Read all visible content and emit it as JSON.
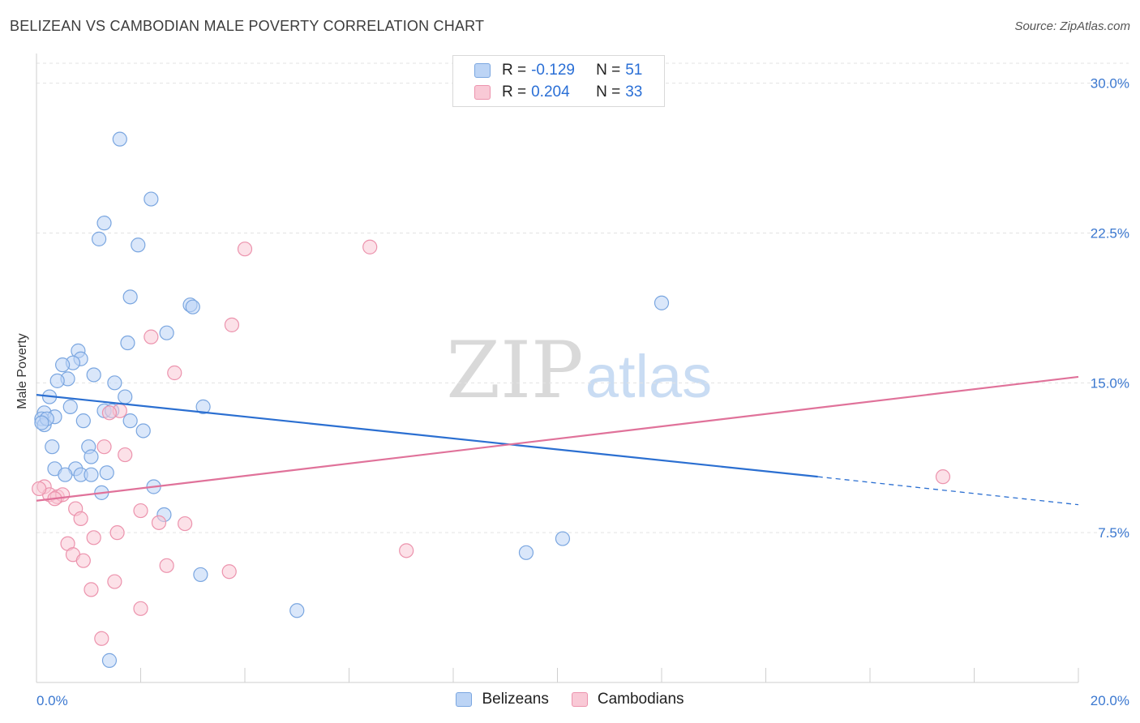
{
  "title": "BELIZEAN VS CAMBODIAN MALE POVERTY CORRELATION CHART",
  "source": "Source: ZipAtlas.com",
  "watermark": {
    "zip": "ZIP",
    "atlas": "atlas"
  },
  "legend": {
    "rows": [
      {
        "r_label": "R =",
        "r_value": "-0.129",
        "n_label": "N =",
        "n_value": "51"
      },
      {
        "r_label": "R =",
        "r_value": "0.204",
        "n_label": "N =",
        "n_value": "33"
      }
    ]
  },
  "bottom_legend": [
    "Belizeans",
    "Cambodians"
  ],
  "colors": {
    "blue_fill": "#bcd4f5",
    "blue_stroke": "#7aa6e0",
    "blue_line": "#2b6fd1",
    "pink_fill": "#f9c9d6",
    "pink_stroke": "#ec93ad",
    "pink_line": "#e0729a",
    "tick_text": "#3b78d0",
    "grid": "#e3e3e3"
  },
  "chart_data": {
    "type": "scatter",
    "title": "BELIZEAN VS CAMBODIAN MALE POVERTY CORRELATION CHART",
    "xlabel": "",
    "ylabel": "Male Poverty",
    "xlim": [
      0,
      20
    ],
    "ylim": [
      0,
      31
    ],
    "x_tick_labels": [
      "0.0%",
      "20.0%"
    ],
    "y_ticks": [
      7.5,
      15.0,
      22.5,
      30.0
    ],
    "y_tick_labels": [
      "7.5%",
      "15.0%",
      "22.5%",
      "30.0%"
    ],
    "series": [
      {
        "name": "Belizeans",
        "color": "#7aa6e0",
        "points": [
          [
            1.6,
            27.2
          ],
          [
            2.2,
            24.2
          ],
          [
            1.3,
            23.0
          ],
          [
            1.2,
            22.2
          ],
          [
            1.95,
            21.9
          ],
          [
            1.8,
            19.3
          ],
          [
            2.95,
            18.9
          ],
          [
            3.0,
            18.8
          ],
          [
            12.0,
            19.0
          ],
          [
            2.5,
            17.5
          ],
          [
            1.75,
            17.0
          ],
          [
            0.8,
            16.6
          ],
          [
            0.85,
            16.2
          ],
          [
            0.7,
            16.0
          ],
          [
            0.5,
            15.9
          ],
          [
            1.1,
            15.4
          ],
          [
            0.6,
            15.2
          ],
          [
            0.4,
            15.1
          ],
          [
            1.5,
            15.0
          ],
          [
            1.7,
            14.3
          ],
          [
            0.25,
            14.3
          ],
          [
            0.65,
            13.8
          ],
          [
            3.2,
            13.8
          ],
          [
            1.3,
            13.6
          ],
          [
            1.45,
            13.6
          ],
          [
            0.15,
            13.5
          ],
          [
            0.35,
            13.3
          ],
          [
            0.1,
            13.2
          ],
          [
            0.9,
            13.1
          ],
          [
            1.8,
            13.1
          ],
          [
            2.05,
            12.6
          ],
          [
            0.15,
            12.9
          ],
          [
            0.3,
            11.8
          ],
          [
            1.0,
            11.8
          ],
          [
            1.05,
            11.3
          ],
          [
            0.35,
            10.7
          ],
          [
            0.75,
            10.7
          ],
          [
            1.35,
            10.5
          ],
          [
            0.55,
            10.4
          ],
          [
            0.85,
            10.4
          ],
          [
            1.05,
            10.4
          ],
          [
            2.25,
            9.8
          ],
          [
            1.25,
            9.5
          ],
          [
            2.45,
            8.4
          ],
          [
            10.1,
            7.2
          ],
          [
            9.4,
            6.5
          ],
          [
            3.15,
            5.4
          ],
          [
            5.0,
            3.6
          ],
          [
            1.4,
            1.1
          ],
          [
            0.2,
            13.2
          ],
          [
            0.1,
            13.0
          ]
        ]
      },
      {
        "name": "Cambodians",
        "color": "#ec93ad",
        "points": [
          [
            6.4,
            21.8
          ],
          [
            4.0,
            21.7
          ],
          [
            3.75,
            17.9
          ],
          [
            2.2,
            17.3
          ],
          [
            2.65,
            15.5
          ],
          [
            1.6,
            13.6
          ],
          [
            1.4,
            13.5
          ],
          [
            1.3,
            11.8
          ],
          [
            1.7,
            11.4
          ],
          [
            0.15,
            9.8
          ],
          [
            0.25,
            9.4
          ],
          [
            0.4,
            9.3
          ],
          [
            0.5,
            9.4
          ],
          [
            0.35,
            9.2
          ],
          [
            0.75,
            8.7
          ],
          [
            2.0,
            8.6
          ],
          [
            0.85,
            8.2
          ],
          [
            2.35,
            8.0
          ],
          [
            2.85,
            7.95
          ],
          [
            1.55,
            7.5
          ],
          [
            1.1,
            7.25
          ],
          [
            0.6,
            6.95
          ],
          [
            7.1,
            6.6
          ],
          [
            0.7,
            6.4
          ],
          [
            0.9,
            6.1
          ],
          [
            2.5,
            5.85
          ],
          [
            3.7,
            5.55
          ],
          [
            1.5,
            5.05
          ],
          [
            1.05,
            4.65
          ],
          [
            2.0,
            3.7
          ],
          [
            1.25,
            2.2
          ],
          [
            17.4,
            10.3
          ],
          [
            0.05,
            9.7
          ]
        ]
      }
    ],
    "trend_lines": [
      {
        "name": "Belizeans",
        "x0": 0.0,
        "y0": 14.4,
        "x1": 15.0,
        "y1": 10.3,
        "dash_x0": 15.0,
        "dash_x1": 20.0,
        "dash_y1": 8.9
      },
      {
        "name": "Cambodians",
        "x0": 0.0,
        "y0": 9.1,
        "x1": 20.0,
        "y1": 15.3
      }
    ]
  }
}
